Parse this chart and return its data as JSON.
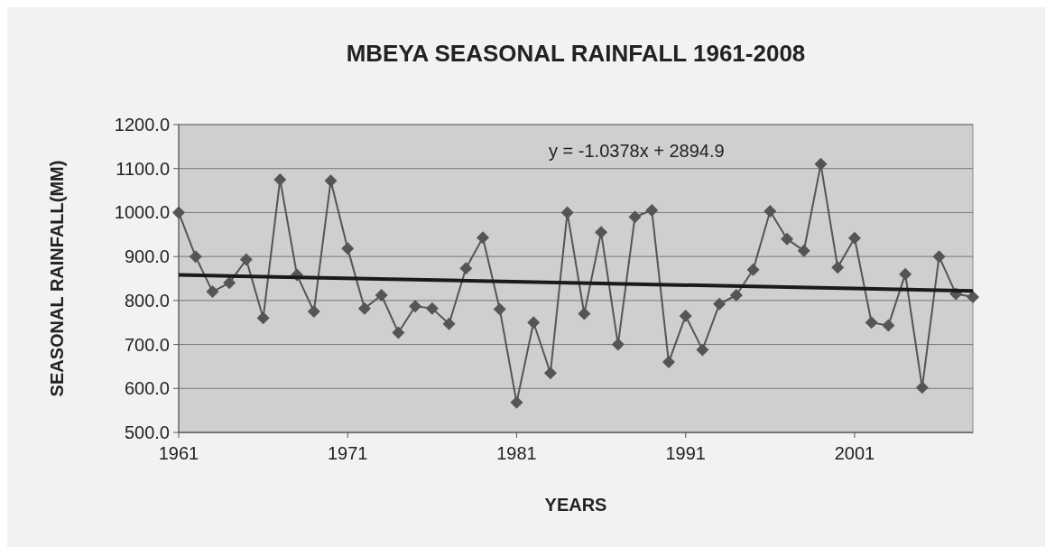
{
  "chart_data": {
    "type": "line",
    "title": "MBEYA SEASONAL RAINFALL 1961-2008",
    "xlabel": "YEARS",
    "ylabel": "SEASONAL RAINFALL(MM)",
    "annotations": [
      "y = -1.0378x + 2894.9"
    ],
    "x": [
      1961,
      1962,
      1963,
      1964,
      1965,
      1966,
      1967,
      1968,
      1969,
      1970,
      1971,
      1972,
      1973,
      1974,
      1975,
      1976,
      1977,
      1978,
      1979,
      1980,
      1981,
      1982,
      1983,
      1984,
      1985,
      1986,
      1987,
      1988,
      1989,
      1990,
      1991,
      1992,
      1993,
      1994,
      1995,
      1996,
      1997,
      1998,
      1999,
      2000,
      2001,
      2002,
      2003,
      2004,
      2005,
      2006,
      2007,
      2008
    ],
    "series": [
      {
        "color": "#555555",
        "marker": "diamond",
        "values": [
          1000,
          900,
          820,
          840,
          893,
          760,
          1075,
          858,
          775,
          1072,
          918,
          782,
          812,
          727,
          787,
          782,
          747,
          873,
          943,
          780,
          568,
          750,
          635,
          1000,
          770,
          955,
          700,
          990,
          1005,
          660,
          765,
          688,
          792,
          812,
          870,
          1003,
          940,
          913,
          1110,
          875,
          942,
          750,
          743,
          860,
          602,
          900,
          815,
          808
        ]
      },
      {
        "color": "#1a1a1a",
        "marker": "none",
        "x": [
          1961,
          2008
        ],
        "values": [
          858,
          822
        ]
      }
    ],
    "xlim": [
      1961,
      2008
    ],
    "xticks": [
      1961,
      1971,
      1981,
      1991,
      2001
    ],
    "ylim": [
      500,
      1200
    ],
    "yticks": [
      {
        "value": 500,
        "label": "500.0"
      },
      {
        "value": 600,
        "label": "600.0"
      },
      {
        "value": 700,
        "label": "700.0"
      },
      {
        "value": 800,
        "label": "800.0"
      },
      {
        "value": 900,
        "label": "900.0"
      },
      {
        "value": 1000,
        "label": "1000.0"
      },
      {
        "value": 1100,
        "label": "1100.0"
      },
      {
        "value": 1200,
        "label": "1200.0"
      }
    ],
    "grid": "y"
  }
}
